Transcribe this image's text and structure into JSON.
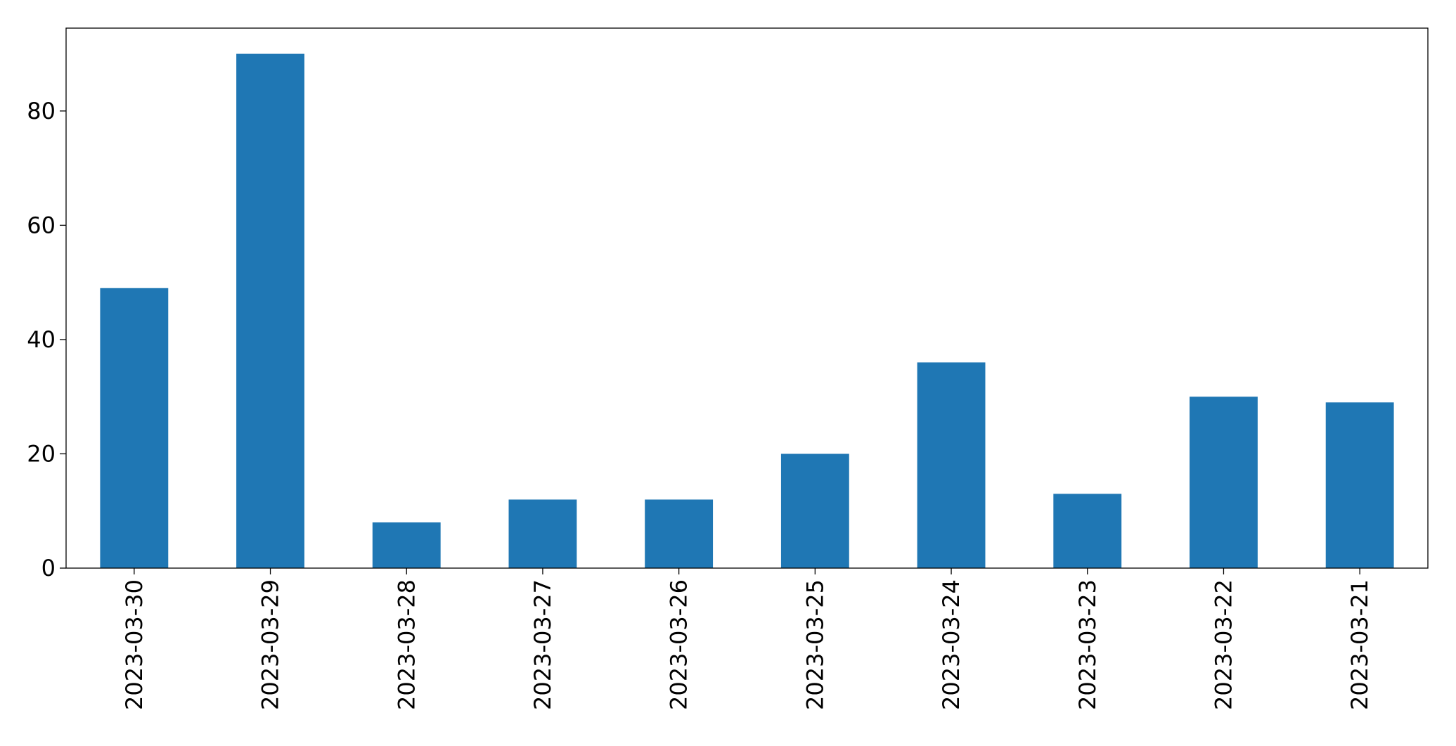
{
  "chart_data": {
    "type": "bar",
    "categories": [
      "2023-03-30",
      "2023-03-29",
      "2023-03-28",
      "2023-03-27",
      "2023-03-26",
      "2023-03-25",
      "2023-03-24",
      "2023-03-23",
      "2023-03-22",
      "2023-03-21"
    ],
    "values": [
      49,
      90,
      8,
      12,
      12,
      20,
      36,
      13,
      30,
      29
    ],
    "color": "#1f77b4",
    "ylim": [
      0,
      94.5
    ],
    "yticks": [
      0,
      20,
      40,
      60,
      80
    ],
    "grid": false
  }
}
